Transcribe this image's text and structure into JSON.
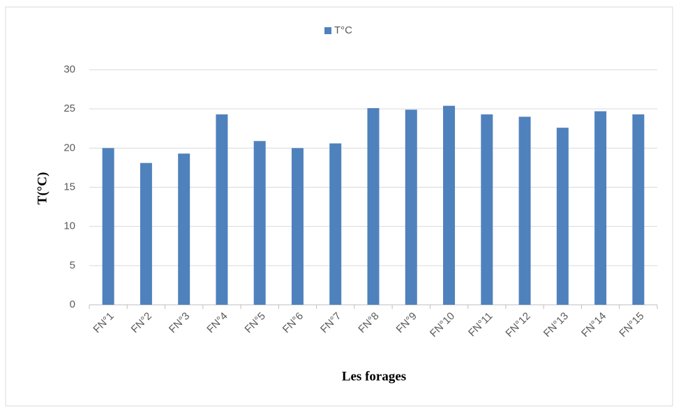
{
  "chart_data": {
    "type": "bar",
    "series": [
      {
        "name": "T°C",
        "color": "#4f81bd",
        "values": [
          20.0,
          18.1,
          19.3,
          24.3,
          20.9,
          20.0,
          20.6,
          25.1,
          24.9,
          25.4,
          24.3,
          24.0,
          22.6,
          24.7,
          24.3
        ]
      }
    ],
    "categories": [
      "FN°1",
      "FN°2",
      "FN°3",
      "FN°4",
      "FN°5",
      "FN°6",
      "FN°7",
      "FN°8",
      "FN°9",
      "FN°10",
      "FN°11",
      "FN°12",
      "FN°13",
      "FN°14",
      "FN°15"
    ],
    "xlabel": "Les forages",
    "ylabel": "T(°C)",
    "ylim": [
      0,
      30
    ],
    "yticks": [
      0,
      5,
      10,
      15,
      20,
      25,
      30
    ],
    "grid": true,
    "legend": "top"
  }
}
